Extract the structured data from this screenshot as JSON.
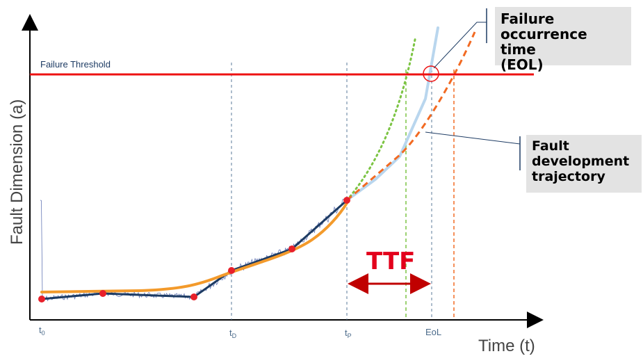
{
  "axes": {
    "y_title": "Fault Dimension (a)",
    "x_title": "Time (t)"
  },
  "threshold": {
    "label": "Failure Threshold",
    "color": "#ee1111"
  },
  "ticks": {
    "t0": {
      "main": "t",
      "sub": "0"
    },
    "tD": {
      "main": "t",
      "sub": "D"
    },
    "tP": {
      "main": "t",
      "sub": "P"
    },
    "eol": "EoL"
  },
  "ttf_label": "TTF",
  "callouts": {
    "eol": [
      "Failure",
      "occurrence time",
      "(EOL)"
    ],
    "trajectory": [
      "Fault",
      "development",
      "trajectory"
    ]
  },
  "colors": {
    "fit_curve": "#f39a2b",
    "measured_segments": "#1d3b63",
    "noisy_signal": "#4a60a8",
    "markers": "#e8202a",
    "pred_dotted": "#7cc443",
    "pred_dashed": "#f26a22",
    "actual_traj": "#b9d6ee",
    "ttf": "#c00000",
    "guide_blue": "#5a7a9a"
  }
}
